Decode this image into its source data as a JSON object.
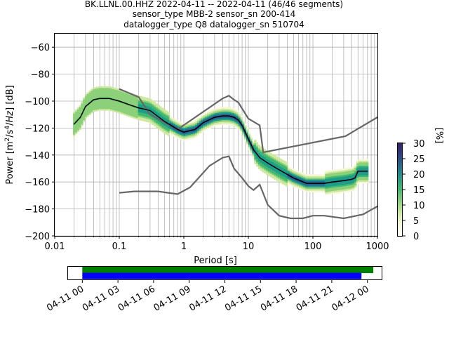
{
  "title": {
    "line1": "BK.LLNL.00.HHZ   2022-04-11 -- 2022-04-11  (46/46 segments)",
    "line2": "sensor_type MBB-2 sensor_sn 200-414",
    "line3": "datalogger_type Q8 datalogger_sn 510704"
  },
  "chart_data": [
    {
      "type": "heatmap",
      "subtype": "probabilistic power spectral density",
      "xlabel": "Period [s]",
      "ylabel": "Power [m²/s⁴/Hz] [dB]",
      "xscale": "log",
      "xlim": [
        0.01,
        1000
      ],
      "ylim": [
        -200,
        -50
      ],
      "xticks": [
        0.01,
        0.1,
        1,
        10,
        100,
        1000
      ],
      "xtick_labels": [
        "0.01",
        "0.1",
        "1",
        "10",
        "100",
        "1000"
      ],
      "yticks": [
        -200,
        -180,
        -160,
        -140,
        -120,
        -100,
        -80,
        -60
      ],
      "ytick_labels": [
        "−200",
        "−180",
        "−160",
        "−140",
        "−120",
        "−100",
        "−80",
        "−60"
      ],
      "grid": true,
      "colorbar": {
        "label": "[%]",
        "range": [
          0,
          30
        ],
        "ticks": [
          0,
          5,
          10,
          15,
          20,
          25,
          30
        ],
        "tick_labels": [
          "0",
          "5",
          "10",
          "15",
          "20",
          "25",
          "30"
        ],
        "colormap": [
          "#ffffff",
          "#f4f8d8",
          "#cfe8a0",
          "#8cd07a",
          "#3fb96f",
          "#1e9d89",
          "#236f8f",
          "#2c3f83",
          "#3b2066"
        ]
      },
      "mean_curve": {
        "color": "#000000",
        "x": [
          0.02,
          0.025,
          0.03,
          0.04,
          0.05,
          0.07,
          0.1,
          0.15,
          0.2,
          0.3,
          0.5,
          0.8,
          1,
          1.5,
          2,
          3,
          4,
          5,
          6,
          7,
          8,
          10,
          12,
          15,
          20,
          30,
          50,
          80,
          100,
          150,
          200,
          300,
          400,
          450,
          500,
          700
        ],
        "y": [
          -117,
          -112,
          -104,
          -99,
          -98,
          -98,
          -100,
          -103,
          -105,
          -107,
          -115,
          -121,
          -123,
          -121,
          -116,
          -112,
          -111,
          -111,
          -112,
          -114,
          -118,
          -128,
          -136,
          -142,
          -146,
          -151,
          -157,
          -161,
          -161,
          -161,
          -160,
          -159,
          -158,
          -157,
          -152,
          -152
        ]
      },
      "noise_model_high": {
        "color": "#666666",
        "x": [
          0.1,
          0.2,
          0.3,
          0.8,
          4,
          5,
          6,
          7,
          10,
          15,
          17,
          320,
          1000
        ],
        "y": [
          -91,
          -97,
          -110,
          -121,
          -98,
          -96,
          -99,
          -101,
          -113,
          -118,
          -138,
          -126,
          -112
        ]
      },
      "noise_model_low": {
        "color": "#666666",
        "x": [
          0.1,
          0.17,
          0.4,
          0.8,
          1.25,
          2.5,
          4,
          5,
          6,
          8,
          10,
          12,
          15,
          20,
          30,
          45,
          70,
          100,
          150,
          300,
          600,
          1000
        ],
        "y": [
          -168,
          -167,
          -167,
          -169,
          -164,
          -148,
          -142,
          -141,
          -150,
          -157,
          -163,
          -166,
          -162,
          -177,
          -185,
          -187,
          -187,
          -185,
          -185,
          -187,
          -184,
          -178
        ]
      }
    },
    {
      "type": "bar",
      "subtype": "data coverage timeline",
      "xtick_labels": [
        "04-11 00",
        "04-11 03",
        "04-11 06",
        "04-11 09",
        "04-11 12",
        "04-11 15",
        "04-11 18",
        "04-11 21",
        "04-12 00"
      ],
      "x_hours": [
        0,
        3,
        6,
        9,
        12,
        15,
        18,
        21,
        24
      ],
      "xlim_hours": [
        -1.2,
        25.2
      ],
      "series": [
        {
          "color": "#008000",
          "start_hour": 0,
          "end_hour": 24.5
        },
        {
          "color": "#0000ff",
          "start_hour": 0,
          "end_hour": 23.5
        }
      ]
    }
  ]
}
